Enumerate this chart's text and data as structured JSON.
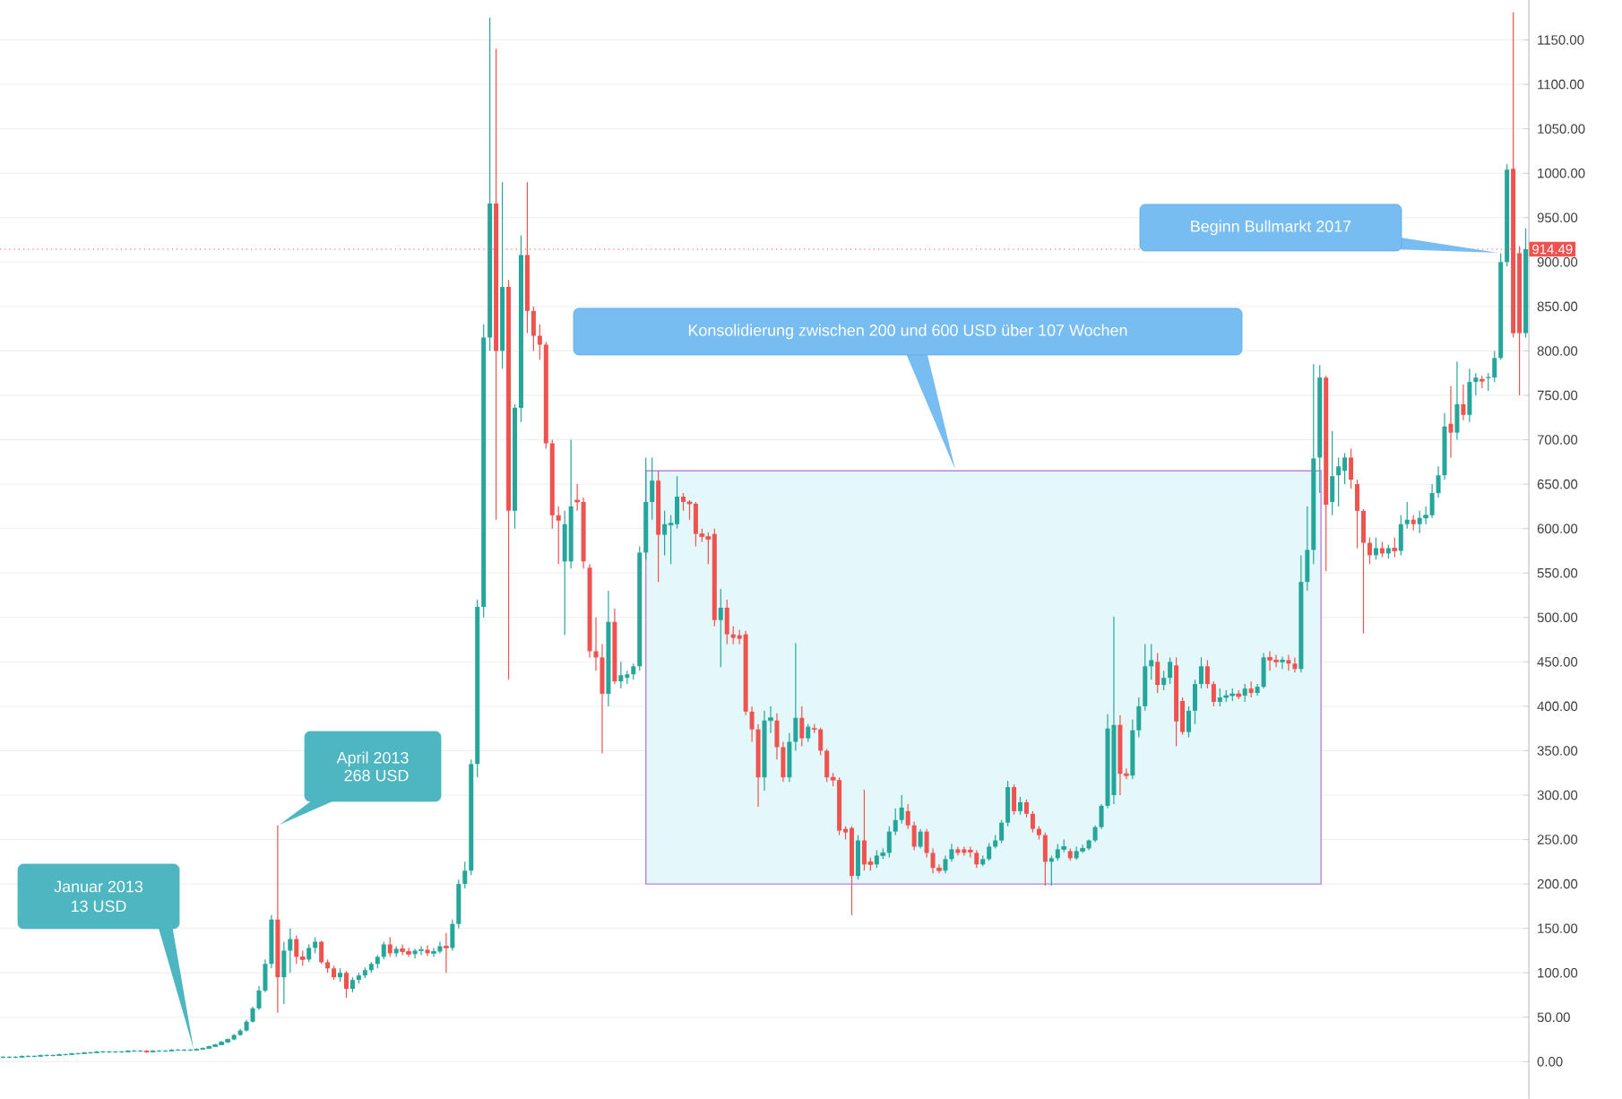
{
  "chart_data": {
    "type": "candlestick",
    "categories": [
      null,
      null,
      null,
      null,
      null,
      null,
      null,
      null,
      null,
      null,
      null,
      null,
      null,
      null,
      null,
      null,
      null,
      null,
      null,
      null,
      null,
      null,
      null,
      null,
      null,
      null,
      null,
      null,
      null,
      null,
      null,
      null,
      null,
      null,
      null,
      null,
      null,
      null,
      null,
      null,
      null,
      null,
      null,
      null,
      null,
      null,
      null,
      null,
      null,
      null,
      null,
      null,
      null,
      null,
      null,
      null,
      null,
      null,
      null,
      null,
      null,
      null,
      null,
      null,
      null,
      null,
      null,
      null,
      null,
      null,
      null,
      null,
      null,
      null,
      null,
      null,
      null,
      null,
      null,
      null,
      null,
      null,
      null,
      null,
      null,
      null,
      null,
      null,
      null,
      null,
      null,
      null,
      null,
      null,
      null,
      null,
      null,
      null,
      null,
      null,
      null,
      null,
      null,
      null,
      null,
      null,
      null,
      null,
      null,
      null,
      null,
      null,
      null,
      null,
      null,
      null,
      null,
      null,
      null,
      null,
      null,
      null,
      null,
      null,
      null,
      null,
      null,
      null,
      null,
      null,
      null,
      null,
      null,
      null,
      null,
      null,
      null,
      null,
      null,
      null,
      null,
      null,
      null,
      null,
      null,
      null,
      null,
      null,
      null,
      null,
      null,
      null,
      null,
      null,
      null,
      null,
      null,
      null,
      null,
      null,
      null,
      null,
      null,
      null,
      null,
      null,
      null,
      null,
      null,
      null,
      null,
      null,
      null,
      null,
      null,
      null,
      null,
      null,
      null,
      null,
      null,
      null,
      null,
      null,
      null,
      null,
      null,
      null,
      null,
      null,
      null,
      null,
      null,
      null,
      null,
      null,
      null,
      null,
      null,
      null,
      null,
      null,
      null,
      null,
      null,
      null,
      null,
      null,
      null,
      null,
      null,
      null,
      null,
      null,
      null,
      null,
      null,
      null,
      null,
      null,
      null,
      null,
      null,
      null,
      null,
      null,
      null,
      null,
      null,
      null,
      null,
      null,
      null,
      null,
      null,
      null,
      null,
      null,
      null,
      null,
      null,
      null,
      null,
      null,
      null
    ],
    "ohlc": [
      [
        5,
        6,
        4,
        5
      ],
      [
        5,
        6,
        4,
        5
      ],
      [
        5,
        6,
        4,
        5
      ],
      [
        5,
        7,
        5,
        6
      ],
      [
        6,
        7,
        5,
        6
      ],
      [
        6,
        7,
        5,
        6
      ],
      [
        6,
        8,
        6,
        7
      ],
      [
        7,
        8,
        6,
        7
      ],
      [
        7,
        8,
        6,
        7
      ],
      [
        7,
        9,
        7,
        8
      ],
      [
        8,
        9,
        7,
        8
      ],
      [
        8,
        10,
        8,
        9
      ],
      [
        9,
        10,
        8,
        9
      ],
      [
        9,
        11,
        9,
        10
      ],
      [
        10,
        11,
        9,
        10
      ],
      [
        10,
        12,
        10,
        11
      ],
      [
        11,
        12,
        10,
        11
      ],
      [
        11,
        12,
        10,
        11
      ],
      [
        11,
        12,
        10,
        11
      ],
      [
        11,
        12,
        10,
        11
      ],
      [
        11,
        13,
        11,
        12
      ],
      [
        12,
        13,
        11,
        12
      ],
      [
        12,
        13,
        11,
        12
      ],
      [
        12,
        13,
        10,
        11
      ],
      [
        11,
        13,
        11,
        12
      ],
      [
        12,
        13,
        11,
        12
      ],
      [
        12,
        13,
        11,
        12
      ],
      [
        12,
        14,
        12,
        13
      ],
      [
        13,
        14,
        12,
        13
      ],
      [
        13,
        14,
        12,
        13
      ],
      [
        13,
        14,
        12,
        13
      ],
      [
        13,
        15,
        13,
        14
      ],
      [
        14,
        16,
        14,
        15
      ],
      [
        15,
        18,
        15,
        17
      ],
      [
        17,
        20,
        17,
        19
      ],
      [
        19,
        23,
        19,
        22
      ],
      [
        22,
        26,
        21,
        25
      ],
      [
        25,
        31,
        24,
        30
      ],
      [
        30,
        37,
        29,
        35
      ],
      [
        35,
        47,
        34,
        45
      ],
      [
        45,
        62,
        44,
        60
      ],
      [
        60,
        85,
        58,
        80
      ],
      [
        80,
        115,
        78,
        110
      ],
      [
        110,
        165,
        105,
        160
      ],
      [
        160,
        266,
        55,
        95
      ],
      [
        95,
        135,
        65,
        125
      ],
      [
        125,
        150,
        100,
        138
      ],
      [
        138,
        142,
        110,
        118
      ],
      [
        118,
        125,
        108,
        115
      ],
      [
        115,
        132,
        112,
        128
      ],
      [
        128,
        140,
        122,
        135
      ],
      [
        135,
        136,
        110,
        112
      ],
      [
        112,
        115,
        100,
        105
      ],
      [
        105,
        108,
        92,
        95
      ],
      [
        95,
        105,
        90,
        100
      ],
      [
        100,
        102,
        72,
        82
      ],
      [
        82,
        95,
        78,
        92
      ],
      [
        92,
        100,
        88,
        97
      ],
      [
        97,
        106,
        94,
        103
      ],
      [
        103,
        112,
        100,
        110
      ],
      [
        110,
        120,
        105,
        118
      ],
      [
        118,
        135,
        115,
        132
      ],
      [
        132,
        140,
        118,
        122
      ],
      [
        122,
        130,
        118,
        127
      ],
      [
        127,
        132,
        120,
        124
      ],
      [
        124,
        128,
        118,
        121
      ],
      [
        121,
        127,
        116,
        125
      ],
      [
        125,
        130,
        120,
        126
      ],
      [
        126,
        131,
        119,
        122
      ],
      [
        122,
        128,
        118,
        124
      ],
      [
        124,
        135,
        122,
        130
      ],
      [
        130,
        145,
        100,
        128
      ],
      [
        128,
        160,
        125,
        155
      ],
      [
        155,
        205,
        150,
        200
      ],
      [
        200,
        225,
        195,
        215
      ],
      [
        215,
        340,
        210,
        335
      ],
      [
        335,
        520,
        320,
        512
      ],
      [
        512,
        830,
        500,
        815
      ],
      [
        815,
        1175,
        800,
        966
      ],
      [
        966,
        1140,
        610,
        800
      ],
      [
        800,
        990,
        780,
        872
      ],
      [
        872,
        880,
        430,
        620
      ],
      [
        620,
        740,
        600,
        736
      ],
      [
        736,
        930,
        720,
        908
      ],
      [
        908,
        990,
        820,
        845
      ],
      [
        845,
        850,
        800,
        817
      ],
      [
        817,
        830,
        790,
        807
      ],
      [
        807,
        810,
        690,
        696
      ],
      [
        696,
        700,
        600,
        615
      ],
      [
        615,
        625,
        560,
        609
      ],
      [
        563,
        620,
        480,
        605
      ],
      [
        563,
        700,
        555,
        625
      ],
      [
        632,
        650,
        620,
        630
      ],
      [
        630,
        635,
        555,
        563
      ],
      [
        556,
        560,
        455,
        462
      ],
      [
        462,
        500,
        440,
        455
      ],
      [
        455,
        470,
        347,
        414
      ],
      [
        414,
        530,
        400,
        495
      ],
      [
        495,
        510,
        425,
        428
      ],
      [
        428,
        450,
        420,
        435
      ],
      [
        432,
        440,
        425,
        436
      ],
      [
        436,
        448,
        430,
        445
      ],
      [
        445,
        580,
        440,
        573
      ],
      [
        573,
        680,
        565,
        630
      ],
      [
        630,
        680,
        610,
        654
      ],
      [
        654,
        665,
        540,
        593
      ],
      [
        593,
        620,
        570,
        605
      ],
      [
        604,
        615,
        560,
        606
      ],
      [
        605,
        659,
        600,
        636
      ],
      [
        636,
        640,
        620,
        630
      ],
      [
        630,
        632,
        610,
        628
      ],
      [
        628,
        630,
        580,
        594
      ],
      [
        594,
        600,
        585,
        591
      ],
      [
        591,
        596,
        560,
        588
      ],
      [
        594,
        600,
        490,
        497
      ],
      [
        497,
        532,
        444,
        511
      ],
      [
        511,
        520,
        470,
        481
      ],
      [
        481,
        490,
        470,
        477
      ],
      [
        480,
        486,
        470,
        476
      ],
      [
        481,
        485,
        390,
        394
      ],
      [
        394,
        400,
        360,
        374
      ],
      [
        374,
        380,
        287,
        320
      ],
      [
        320,
        395,
        305,
        384
      ],
      [
        384,
        400,
        370,
        387
      ],
      [
        384,
        392,
        340,
        354
      ],
      [
        354,
        360,
        315,
        320
      ],
      [
        320,
        370,
        315,
        360
      ],
      [
        360,
        471,
        350,
        387
      ],
      [
        387,
        400,
        355,
        364
      ],
      [
        364,
        380,
        360,
        377
      ],
      [
        375,
        380,
        370,
        374
      ],
      [
        374,
        376,
        345,
        350
      ],
      [
        350,
        352,
        315,
        320
      ],
      [
        320,
        325,
        310,
        317
      ],
      [
        317,
        320,
        255,
        260
      ],
      [
        262,
        265,
        250,
        258
      ],
      [
        263,
        265,
        165,
        209
      ],
      [
        209,
        255,
        205,
        249
      ],
      [
        249,
        306,
        215,
        222
      ],
      [
        225,
        230,
        215,
        222
      ],
      [
        222,
        238,
        218,
        232
      ],
      [
        232,
        240,
        228,
        235
      ],
      [
        235,
        265,
        230,
        259
      ],
      [
        259,
        285,
        255,
        272
      ],
      [
        272,
        300,
        268,
        286
      ],
      [
        282,
        290,
        262,
        266
      ],
      [
        266,
        270,
        238,
        242
      ],
      [
        242,
        262,
        240,
        259
      ],
      [
        259,
        262,
        230,
        235
      ],
      [
        235,
        240,
        212,
        218
      ],
      [
        218,
        222,
        212,
        215
      ],
      [
        215,
        232,
        212,
        228
      ],
      [
        228,
        245,
        225,
        239
      ],
      [
        239,
        242,
        232,
        235
      ],
      [
        239,
        242,
        232,
        235
      ],
      [
        238,
        242,
        230,
        236
      ],
      [
        235,
        238,
        218,
        222
      ],
      [
        222,
        232,
        220,
        228
      ],
      [
        228,
        246,
        226,
        242
      ],
      [
        242,
        255,
        240,
        249
      ],
      [
        249,
        272,
        246,
        269
      ],
      [
        269,
        316,
        265,
        309
      ],
      [
        309,
        312,
        278,
        282
      ],
      [
        282,
        298,
        278,
        292
      ],
      [
        292,
        295,
        275,
        279
      ],
      [
        279,
        282,
        258,
        262
      ],
      [
        262,
        265,
        250,
        255
      ],
      [
        255,
        258,
        198,
        225
      ],
      [
        225,
        232,
        198,
        229
      ],
      [
        229,
        245,
        226,
        239
      ],
      [
        239,
        250,
        236,
        242
      ],
      [
        237,
        240,
        226,
        229
      ],
      [
        229,
        242,
        227,
        237
      ],
      [
        237,
        244,
        235,
        240
      ],
      [
        240,
        250,
        238,
        249
      ],
      [
        249,
        266,
        247,
        264
      ],
      [
        264,
        290,
        262,
        288
      ],
      [
        288,
        391,
        285,
        375
      ],
      [
        300,
        501,
        290,
        379
      ],
      [
        379,
        390,
        300,
        324
      ],
      [
        324,
        330,
        318,
        322
      ],
      [
        322,
        385,
        318,
        373
      ],
      [
        373,
        410,
        365,
        400
      ],
      [
        400,
        470,
        395,
        445
      ],
      [
        445,
        470,
        430,
        452
      ],
      [
        450,
        460,
        415,
        424
      ],
      [
        424,
        440,
        418,
        432
      ],
      [
        432,
        455,
        425,
        450
      ],
      [
        446,
        455,
        355,
        383
      ],
      [
        406,
        410,
        368,
        371
      ],
      [
        371,
        400,
        365,
        395
      ],
      [
        395,
        430,
        380,
        425
      ],
      [
        425,
        455,
        420,
        445
      ],
      [
        445,
        452,
        420,
        425
      ],
      [
        425,
        428,
        400,
        405
      ],
      [
        405,
        420,
        400,
        410
      ],
      [
        410,
        418,
        405,
        412
      ],
      [
        412,
        420,
        406,
        414
      ],
      [
        414,
        418,
        408,
        411
      ],
      [
        412,
        425,
        405,
        420
      ],
      [
        420,
        428,
        410,
        415
      ],
      [
        415,
        425,
        412,
        422
      ],
      [
        422,
        460,
        420,
        455
      ],
      [
        455,
        462,
        440,
        452
      ],
      [
        452,
        458,
        444,
        450
      ],
      [
        450,
        456,
        442,
        452
      ],
      [
        452,
        458,
        440,
        448
      ],
      [
        448,
        455,
        438,
        442
      ],
      [
        442,
        570,
        438,
        540
      ],
      [
        540,
        625,
        530,
        576
      ],
      [
        576,
        785,
        560,
        679
      ],
      [
        680,
        784,
        640,
        770
      ],
      [
        770,
        772,
        552,
        627
      ],
      [
        630,
        710,
        615,
        659
      ],
      [
        660,
        680,
        625,
        670
      ],
      [
        665,
        685,
        650,
        680
      ],
      [
        680,
        690,
        645,
        655
      ],
      [
        650,
        655,
        578,
        620
      ],
      [
        620,
        622,
        482,
        584
      ],
      [
        584,
        590,
        560,
        570
      ],
      [
        570,
        590,
        565,
        578
      ],
      [
        578,
        585,
        568,
        572
      ],
      [
        572,
        582,
        566,
        578
      ],
      [
        578,
        590,
        568,
        575
      ],
      [
        575,
        615,
        570,
        605
      ],
      [
        605,
        630,
        600,
        610
      ],
      [
        610,
        615,
        598,
        605
      ],
      [
        605,
        620,
        595,
        612
      ],
      [
        612,
        625,
        605,
        615
      ],
      [
        615,
        650,
        612,
        640
      ],
      [
        640,
        670,
        635,
        660
      ],
      [
        660,
        730,
        655,
        715
      ],
      [
        718,
        760,
        680,
        708
      ],
      [
        708,
        788,
        700,
        740
      ],
      [
        740,
        762,
        722,
        728
      ],
      [
        728,
        780,
        720,
        765
      ],
      [
        765,
        775,
        750,
        770
      ],
      [
        768,
        772,
        758,
        766
      ],
      [
        770,
        775,
        755,
        770
      ],
      [
        770,
        800,
        765,
        792
      ],
      [
        792,
        910,
        790,
        900
      ],
      [
        900,
        1010,
        895,
        1004
      ],
      [
        1005,
        1181,
        815,
        820
      ],
      [
        910,
        918,
        750,
        820
      ],
      [
        820,
        938,
        815,
        914.49
      ]
    ],
    "ylim": [
      -42,
      1195
    ],
    "yticks": [
      {
        "value": 0,
        "label": "0.00"
      },
      {
        "value": 50,
        "label": "50.00"
      },
      {
        "value": 100,
        "label": "100.00"
      },
      {
        "value": 150,
        "label": "150.00"
      },
      {
        "value": 200,
        "label": "200.00"
      },
      {
        "value": 250,
        "label": "250.00"
      },
      {
        "value": 300,
        "label": "300.00"
      },
      {
        "value": 350,
        "label": "350.00"
      },
      {
        "value": 400,
        "label": "400.00"
      },
      {
        "value": 450,
        "label": "450.00"
      },
      {
        "value": 500,
        "label": "500.00"
      },
      {
        "value": 550,
        "label": "550.00"
      },
      {
        "value": 600,
        "label": "600.00"
      },
      {
        "value": 650,
        "label": "650.00"
      },
      {
        "value": 700,
        "label": "700.00"
      },
      {
        "value": 750,
        "label": "750.00"
      },
      {
        "value": 800,
        "label": "800.00"
      },
      {
        "value": 850,
        "label": "850.00"
      },
      {
        "value": 900,
        "label": "900.00"
      },
      {
        "value": 950,
        "label": "950.00"
      },
      {
        "value": 1000,
        "label": "1000.00"
      },
      {
        "value": 1050,
        "label": "1050.00"
      },
      {
        "value": 1100,
        "label": "1100.00"
      },
      {
        "value": 1150,
        "label": "1150.00"
      }
    ],
    "grid": "y",
    "ref_lines": [
      {
        "axis": "y",
        "value": 914.49,
        "label": "914.49",
        "color": "#ef5350"
      }
    ],
    "bands": [
      {
        "axis": "y",
        "from": 200,
        "to": 665,
        "color": "#e4f7fa",
        "label": "Konsolidierung zwischen 200 und 600 USD über 107 Wochen"
      }
    ],
    "annotations": [
      "Januar 2013",
      "13 USD",
      "April 2013",
      "268 USD",
      "Beginn Bullmarkt 2017"
    ]
  }
}
